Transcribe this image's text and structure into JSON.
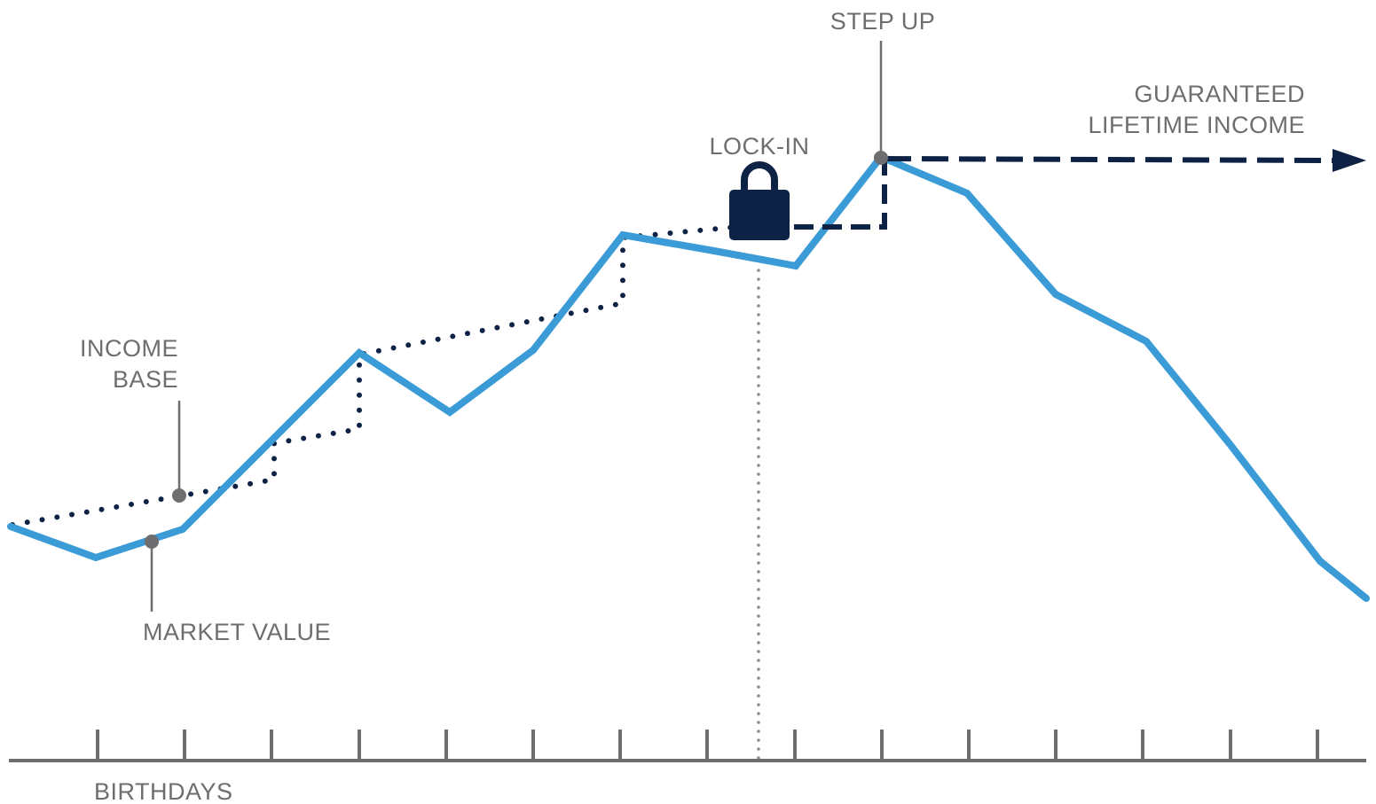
{
  "labels": {
    "step_up": "STEP UP",
    "guaranteed_line1": "GUARANTEED",
    "guaranteed_line2": "LIFETIME INCOME",
    "lock_in": "LOCK-IN",
    "income_base_line1": "INCOME",
    "income_base_line2": "BASE",
    "market_value": "MARKET VALUE",
    "birthdays": "BIRTHDAYS"
  },
  "colors": {
    "market_value": "#3a9bd7",
    "income_base": "#0d2244",
    "guaranteed_income": "#0d2244",
    "lock_icon": "#0d2244",
    "axis": "#6e6e70",
    "marker": "#6e6e70",
    "leader": "#6e6e70",
    "lock_in_guide": "#8a8a8a"
  },
  "icons": {
    "lock": "padlock-icon"
  }
}
